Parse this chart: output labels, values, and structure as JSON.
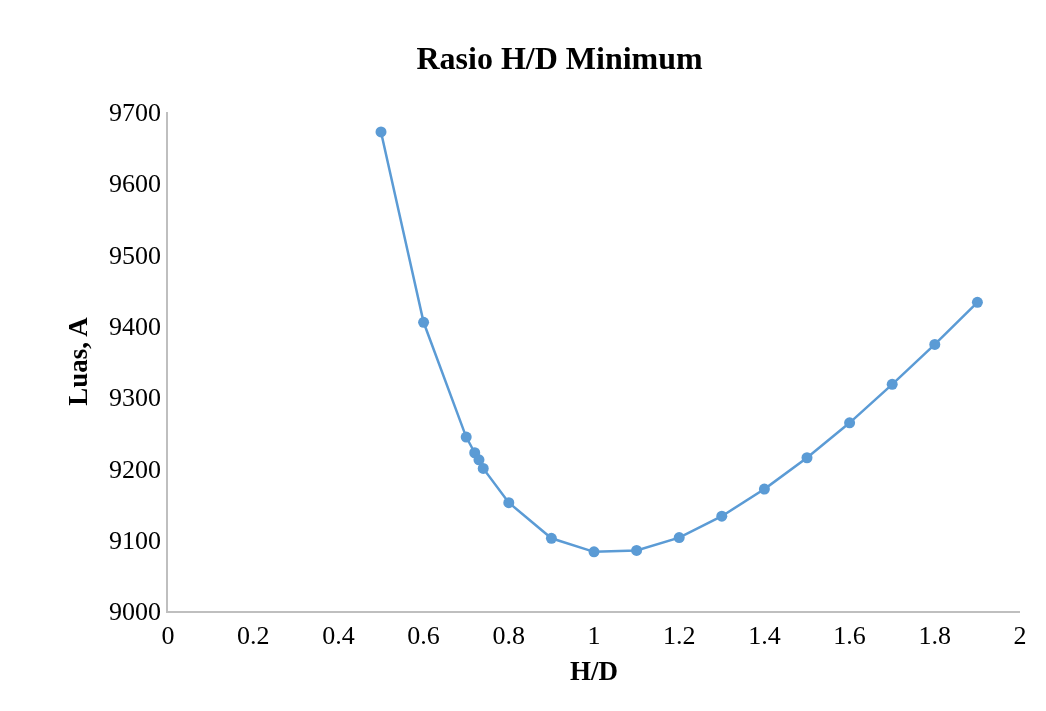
{
  "chart_data": {
    "type": "line",
    "title": "Rasio H/D Minimum",
    "xlabel": "H/D",
    "ylabel": "Luas, A",
    "x": [
      0.5,
      0.6,
      0.7,
      0.72,
      0.73,
      0.74,
      0.8,
      0.9,
      1.0,
      1.1,
      1.2,
      1.3,
      1.4,
      1.5,
      1.6,
      1.7,
      1.8,
      1.9
    ],
    "series": [
      {
        "color": "#5b9bd5",
        "values": [
          9672,
          9405,
          9244,
          9222,
          9212,
          9200,
          9152,
          9102,
          9083,
          9085,
          9103,
          9133,
          9171,
          9215,
          9264,
          9318,
          9374,
          9433
        ]
      }
    ],
    "xlim": [
      0,
      2
    ],
    "xticks": [
      0,
      0.2,
      0.4,
      0.6,
      0.8,
      1,
      1.2,
      1.4,
      1.6,
      1.8,
      2
    ],
    "ylim": [
      9000,
      9700
    ],
    "yticks": [
      9000,
      9100,
      9200,
      9300,
      9400,
      9500,
      9600,
      9700
    ],
    "grid": false,
    "marker": "circle",
    "line_style": "solid"
  }
}
